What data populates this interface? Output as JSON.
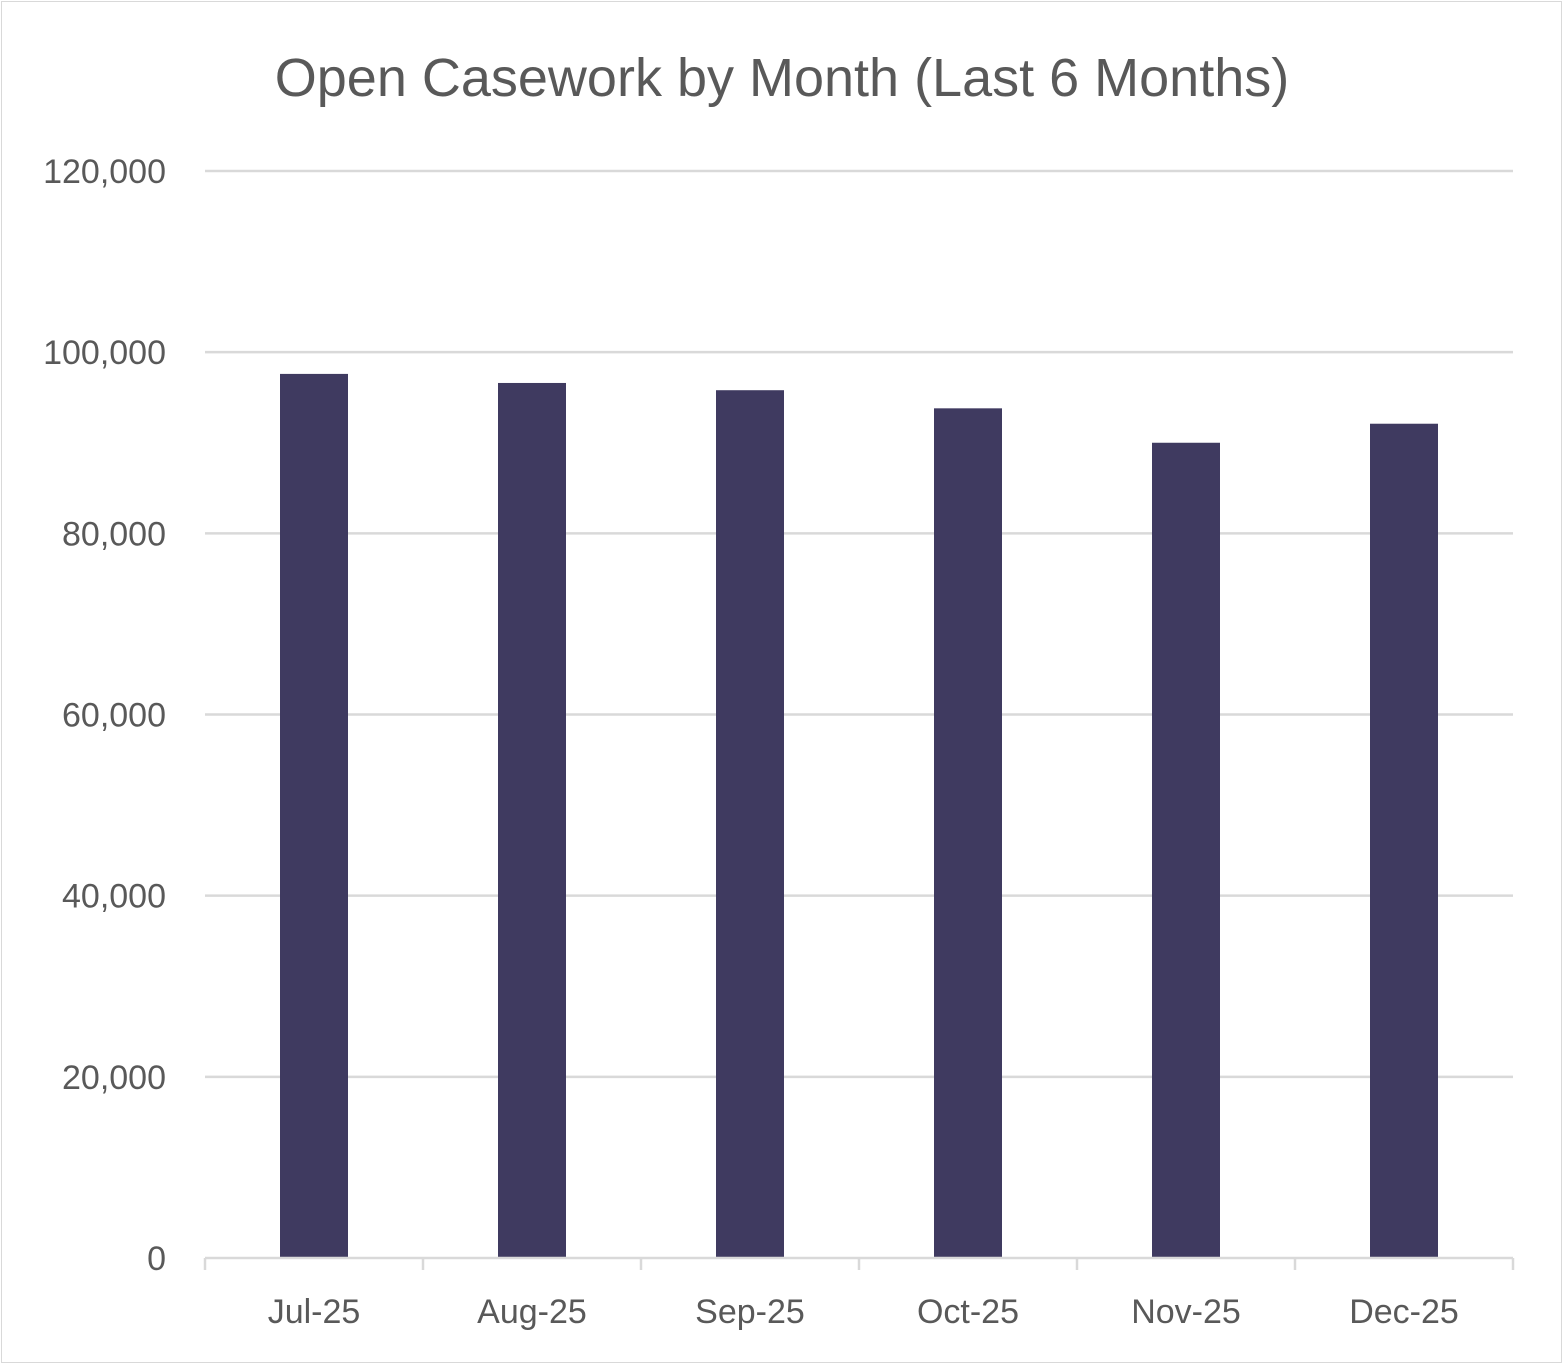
{
  "chart_data": {
    "type": "bar",
    "title": "Open Casework by Month (Last 6 Months)",
    "xlabel": "",
    "ylabel": "",
    "categories": [
      "Jul-25",
      "Aug-25",
      "Sep-25",
      "Oct-25",
      "Nov-25",
      "Dec-25"
    ],
    "values": [
      97600,
      96600,
      95800,
      93800,
      90000,
      92100
    ],
    "ylim": [
      0,
      120000
    ],
    "y_ticks": [
      0,
      20000,
      40000,
      60000,
      80000,
      100000,
      120000
    ],
    "y_tick_labels": [
      "0",
      "20,000",
      "40,000",
      "60,000",
      "80,000",
      "100,000",
      "120,000"
    ],
    "grid": true,
    "legend": "none",
    "colors": {
      "bar": "#3f3a60",
      "grid": "#d9d9d9",
      "axis": "#d9d9d9",
      "text": "#595959"
    }
  }
}
